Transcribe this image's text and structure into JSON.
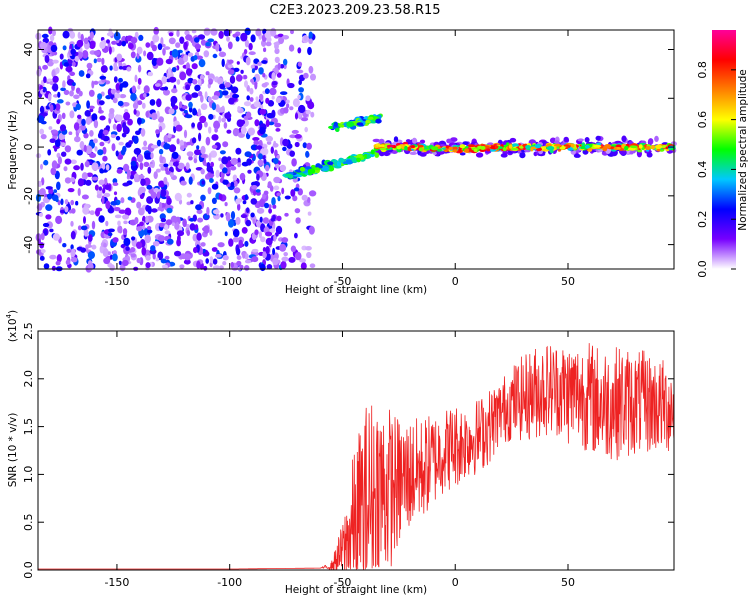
{
  "title": "C2E3.2023.209.23.58.R15",
  "chart_data": [
    {
      "type": "heatmap",
      "description_source": "spectrogram",
      "xlabel": "Height of straight line (km)",
      "ylabel": "Frequency (Hz)",
      "xlim": [
        -185,
        97
      ],
      "ylim": [
        -50,
        48
      ],
      "xticks": [
        -150,
        -100,
        -50,
        0,
        50
      ],
      "yticks": [
        -40,
        -20,
        0,
        20,
        40
      ],
      "colorbar": {
        "label": "Normalized spectral amplitude",
        "range": [
          0,
          0.96
        ],
        "ticks": [
          "0.0",
          "0.2",
          "0.4",
          "0.6",
          "0.8"
        ],
        "colors": [
          "#ffffff",
          "#7700ff",
          "#0000ff",
          "#00c8ff",
          "#00ff00",
          "#ffff00",
          "#ff7f00",
          "#ff0000",
          "#ff0099"
        ]
      },
      "regions": [
        {
          "x_range": [
            -185,
            -65
          ],
          "freq_range": [
            -50,
            48
          ],
          "amplitude": "0.0-0.3",
          "pattern": "scattered noise"
        },
        {
          "x_range": [
            -75,
            -33
          ],
          "freq_center_start": -12,
          "freq_center_end": -2,
          "amplitude": "0.3-0.6",
          "pattern": "lower branch"
        },
        {
          "x_range": [
            -55,
            -33
          ],
          "freq_center_start": 8,
          "freq_center_end": 12,
          "amplitude": "0.3-0.6",
          "pattern": "upper branch"
        },
        {
          "x_range": [
            -35,
            97
          ],
          "freq_center": 0,
          "freq_halfwidth": 3,
          "amplitude": "0.5-0.9",
          "pattern": "narrow band near 0 Hz"
        }
      ]
    },
    {
      "type": "line",
      "xlabel": "Height of straight line (km)",
      "ylabel": "SNR (10 * v/v)",
      "y_multiplier": "(x10",
      "y_multiplier_exp": "4",
      "y_multiplier_close": ")",
      "xlim": [
        -185,
        97
      ],
      "ylim": [
        0,
        2.5
      ],
      "xticks": [
        -150,
        -100,
        -50,
        0,
        50
      ],
      "yticks": [
        "0.0",
        "0.5",
        "1.0",
        "1.5",
        "2.0",
        "2.5"
      ],
      "series": [
        {
          "color": "#ee2222",
          "x": [
            -185,
            -150,
            -100,
            -60,
            -55,
            -50,
            -45,
            -40,
            -35,
            -30,
            -25,
            -20,
            -15,
            -10,
            -5,
            0,
            5,
            10,
            15,
            20,
            25,
            30,
            35,
            40,
            45,
            50,
            55,
            60,
            65,
            70,
            75,
            80,
            85,
            90,
            97
          ],
          "y": [
            0.01,
            0.01,
            0.01,
            0.02,
            0.04,
            0.2,
            0.45,
            0.65,
            0.8,
            0.85,
            0.9,
            1.0,
            1.05,
            1.15,
            1.25,
            1.3,
            1.35,
            1.4,
            1.5,
            1.65,
            1.75,
            1.8,
            1.85,
            1.9,
            1.9,
            1.85,
            1.85,
            1.8,
            1.75,
            1.75,
            1.75,
            1.75,
            1.75,
            1.72,
            1.7
          ],
          "noise": [
            0,
            0,
            0,
            0,
            0.04,
            0.3,
            0.8,
            1.1,
            1.1,
            0.9,
            0.7,
            0.6,
            0.55,
            0.5,
            0.45,
            0.45,
            0.4,
            0.4,
            0.4,
            0.35,
            0.4,
            0.45,
            0.5,
            0.5,
            0.5,
            0.55,
            0.55,
            0.6,
            0.6,
            0.6,
            0.6,
            0.55,
            0.55,
            0.5,
            0.5
          ]
        }
      ]
    }
  ]
}
